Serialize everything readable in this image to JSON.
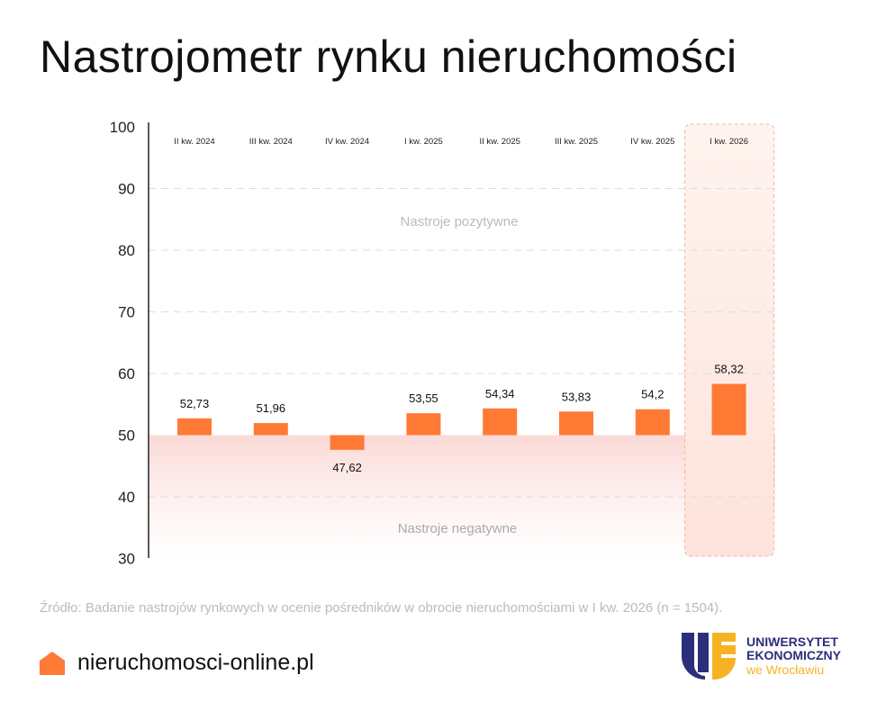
{
  "title": "Nastrojometr rynku nieruchomości",
  "chart_data": {
    "type": "bar",
    "categories": [
      "II kw. 2024",
      "III kw. 2024",
      "IV kw. 2024",
      "I kw. 2025",
      "II kw. 2025",
      "III kw. 2025",
      "IV kw. 2025",
      "I kw. 2026"
    ],
    "values": [
      52.73,
      51.96,
      47.62,
      53.55,
      54.34,
      53.83,
      54.2,
      58.32
    ],
    "value_labels": [
      "52,73",
      "51,96",
      "47,62",
      "53,55",
      "54,34",
      "53,83",
      "54,2",
      "58,32"
    ],
    "baseline": 50,
    "ylim": [
      30,
      100
    ],
    "yticks": [
      30,
      40,
      50,
      60,
      70,
      80,
      90,
      100
    ],
    "highlight": "I kw. 2026",
    "annotations": {
      "positive": "Nastroje pozytywne",
      "negative": "Nastroje negatywne"
    },
    "bar_color": "#ff7a35"
  },
  "source": "Źródło: Badanie nastrojów rynkowych w ocenie pośredników w obrocie nieruchomościami w I kw. 2026 (n = 1504).",
  "brand": {
    "name": "nieruchomosci-online.pl",
    "color": "#ff7a35"
  },
  "partner": {
    "line1": "UNIWERSYTET",
    "line2": "EKONOMICZNY",
    "line3": "we Wrocławiu"
  }
}
